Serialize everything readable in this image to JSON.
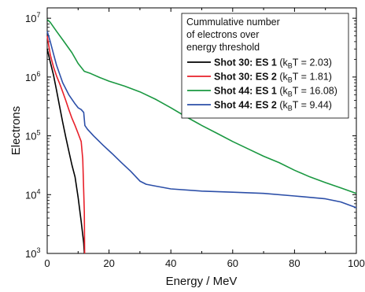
{
  "chart_data": {
    "type": "line",
    "xlabel": "Energy / MeV",
    "ylabel": "Electrons",
    "xlim": [
      0,
      100
    ],
    "ylim": [
      1000,
      15000000
    ],
    "y_scale": "log",
    "grid": false,
    "legend_placement": "top-right",
    "x_ticks": [
      "0",
      "20",
      "40",
      "60",
      "80",
      "100"
    ],
    "y_ticks": [
      {
        "value": 1000,
        "base": "10",
        "exp": "3"
      },
      {
        "value": 10000,
        "base": "10",
        "exp": "4"
      },
      {
        "value": 100000,
        "base": "10",
        "exp": "5"
      },
      {
        "value": 1000000,
        "base": "10",
        "exp": "6"
      },
      {
        "value": 10000000,
        "base": "10",
        "exp": "7"
      }
    ],
    "legend_title": [
      "Cummulative number",
      "of electrons over",
      "energy threshold"
    ],
    "series": [
      {
        "name": "Shot 30: ES 1",
        "name_suffix": " (k",
        "subscript": "B",
        "name_tail": "T = 2.03)",
        "color": "#000000",
        "x": [
          0,
          1,
          2,
          3,
          4,
          5,
          6,
          7,
          8,
          9,
          10,
          11,
          11.8,
          12
        ],
        "y": [
          3000000,
          1800000,
          1100000,
          600000,
          320000,
          170000,
          95000,
          55000,
          32000,
          20000,
          9000,
          3500,
          1500,
          1000
        ]
      },
      {
        "name": "Shot 30: ES 2",
        "name_suffix": " (k",
        "subscript": "B",
        "name_tail": "T = 1.81)",
        "color": "#e8202a",
        "x": [
          0,
          1,
          2,
          3,
          4,
          5,
          6,
          7,
          8,
          9,
          10,
          11,
          11.5,
          12,
          12.1
        ],
        "y": [
          5000000,
          2400000,
          1500000,
          1050000,
          780000,
          560000,
          400000,
          280000,
          200000,
          150000,
          110000,
          80000,
          40000,
          5000,
          1000
        ]
      },
      {
        "name": "Shot 44: ES 1",
        "name_suffix": " (k",
        "subscript": "B",
        "name_tail": "T = 16.08)",
        "color": "#1a9841",
        "x": [
          0,
          1,
          3,
          5,
          8,
          10,
          12,
          14,
          17,
          20,
          25,
          30,
          35,
          40,
          45,
          50,
          55,
          60,
          65,
          70,
          75,
          80,
          85,
          90,
          95,
          100
        ],
        "y": [
          9500000,
          8500000,
          6000000,
          4300000,
          2600000,
          1700000,
          1250000,
          1150000,
          980000,
          850000,
          700000,
          560000,
          420000,
          300000,
          210000,
          150000,
          110000,
          80000,
          60000,
          45000,
          35000,
          26000,
          20000,
          16000,
          13000,
          10500
        ]
      },
      {
        "name": "Shot 44: ES 2",
        "name_suffix": " (k",
        "subscript": "B",
        "name_tail": "T = 9.44)",
        "color": "#2c4fa8",
        "x": [
          0,
          1,
          2,
          3,
          5,
          7,
          9,
          10,
          11,
          11.8,
          12.2,
          13,
          15,
          18,
          21,
          24,
          27,
          30,
          32,
          35,
          40,
          50,
          60,
          70,
          80,
          90,
          95,
          100
        ],
        "y": [
          6000000,
          4000000,
          2500000,
          1600000,
          800000,
          500000,
          350000,
          300000,
          280000,
          250000,
          150000,
          130000,
          100000,
          70000,
          50000,
          35000,
          25000,
          17000,
          15000,
          14000,
          12500,
          11500,
          11000,
          10500,
          9500,
          8500,
          7500,
          6000
        ]
      }
    ]
  }
}
